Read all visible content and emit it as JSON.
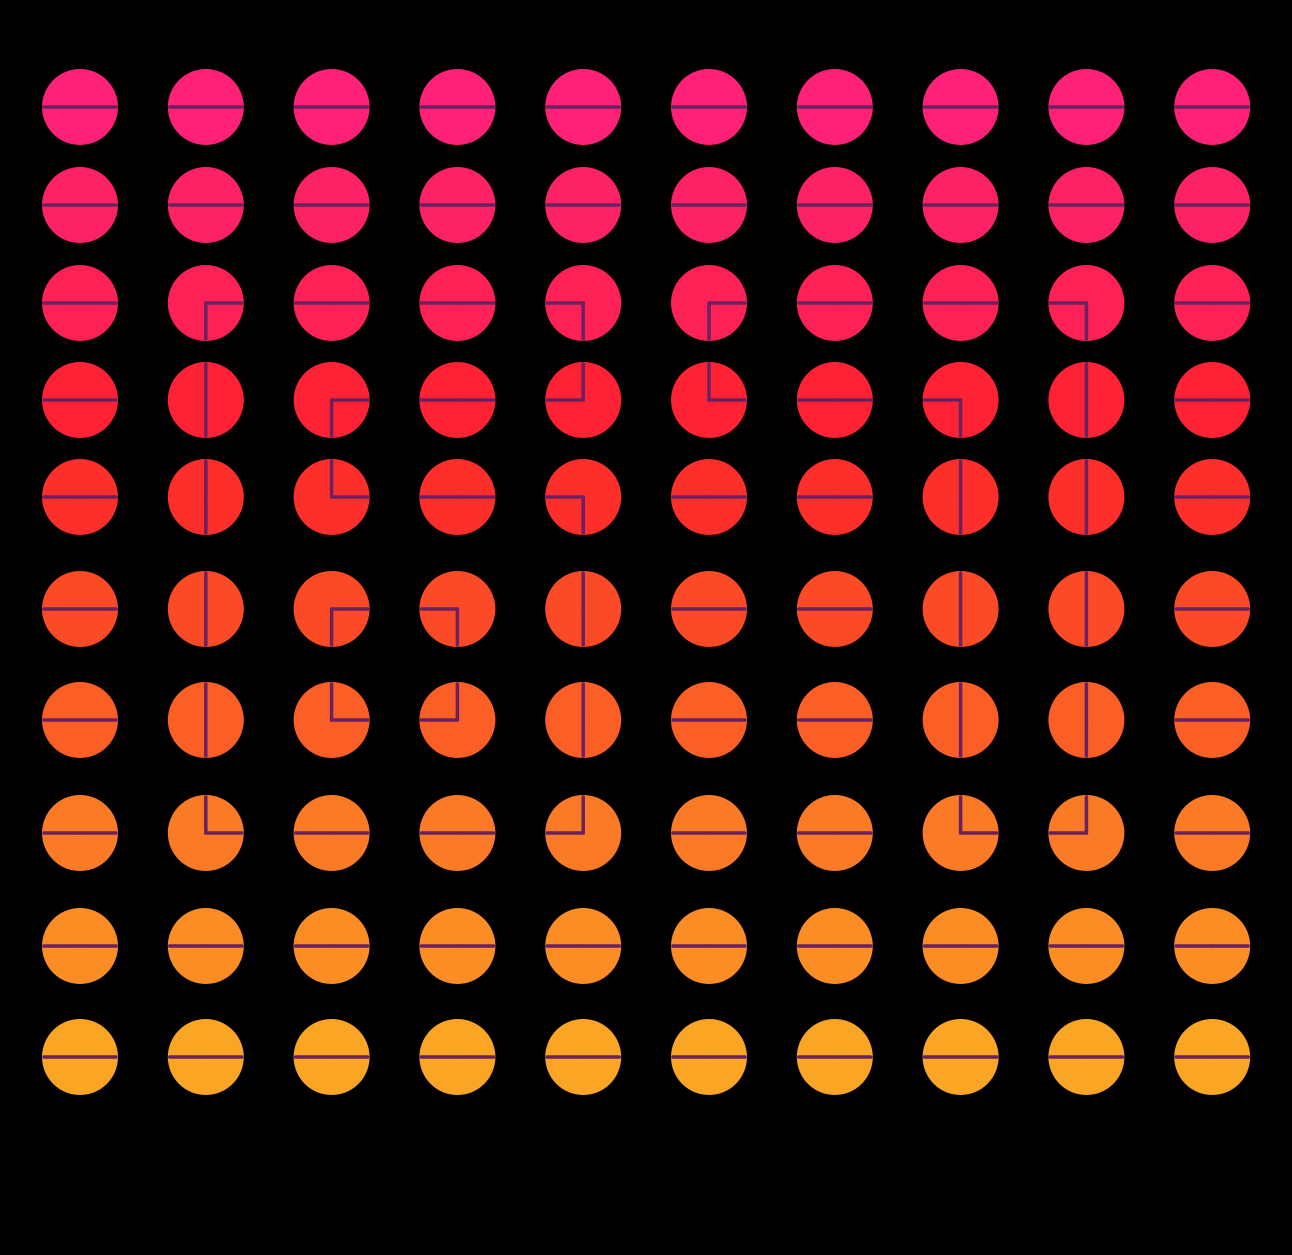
{
  "grid": {
    "rows": [
      {
        "color": "#fe2177",
        "cells": [
          [
            90,
            270
          ],
          [
            90,
            270
          ],
          [
            90,
            270
          ],
          [
            90,
            270
          ],
          [
            90,
            270
          ],
          [
            90,
            270
          ],
          [
            90,
            270
          ],
          [
            90,
            270
          ],
          [
            90,
            270
          ],
          [
            90,
            270
          ]
        ]
      },
      {
        "color": "#fd2166",
        "cells": [
          [
            90,
            270
          ],
          [
            90,
            270
          ],
          [
            90,
            270
          ],
          [
            90,
            270
          ],
          [
            90,
            270
          ],
          [
            90,
            270
          ],
          [
            90,
            270
          ],
          [
            90,
            270
          ],
          [
            90,
            270
          ],
          [
            90,
            270
          ]
        ]
      },
      {
        "color": "#fe2155",
        "cells": [
          [
            90,
            270
          ],
          [
            90,
            180
          ],
          [
            90,
            270
          ],
          [
            90,
            270
          ],
          [
            270,
            180
          ],
          [
            90,
            180
          ],
          [
            90,
            270
          ],
          [
            90,
            270
          ],
          [
            270,
            180
          ],
          [
            90,
            270
          ]
        ]
      },
      {
        "color": "#fe2234",
        "cells": [
          [
            90,
            270
          ],
          [
            0,
            180
          ],
          [
            90,
            180
          ],
          [
            90,
            270
          ],
          [
            0,
            270
          ],
          [
            0,
            90
          ],
          [
            90,
            270
          ],
          [
            270,
            180
          ],
          [
            0,
            180
          ],
          [
            90,
            270
          ]
        ]
      },
      {
        "color": "#fe2e2a",
        "cells": [
          [
            90,
            270
          ],
          [
            0,
            180
          ],
          [
            0,
            90
          ],
          [
            90,
            270
          ],
          [
            270,
            180
          ],
          [
            90,
            270
          ],
          [
            90,
            270
          ],
          [
            0,
            180
          ],
          [
            0,
            180
          ],
          [
            90,
            270
          ]
        ]
      },
      {
        "color": "#fd4a26",
        "cells": [
          [
            90,
            270
          ],
          [
            0,
            180
          ],
          [
            90,
            180
          ],
          [
            270,
            180
          ],
          [
            0,
            180
          ],
          [
            90,
            270
          ],
          [
            90,
            270
          ],
          [
            0,
            180
          ],
          [
            0,
            180
          ],
          [
            90,
            270
          ]
        ]
      },
      {
        "color": "#fc5f25",
        "cells": [
          [
            90,
            270
          ],
          [
            0,
            180
          ],
          [
            0,
            90
          ],
          [
            0,
            270
          ],
          [
            0,
            180
          ],
          [
            90,
            270
          ],
          [
            90,
            270
          ],
          [
            0,
            180
          ],
          [
            0,
            180
          ],
          [
            90,
            270
          ]
        ]
      },
      {
        "color": "#fb7a25",
        "cells": [
          [
            90,
            270
          ],
          [
            0,
            90
          ],
          [
            90,
            270
          ],
          [
            90,
            270
          ],
          [
            0,
            270
          ],
          [
            90,
            270
          ],
          [
            90,
            270
          ],
          [
            0,
            90
          ],
          [
            0,
            270
          ],
          [
            90,
            270
          ]
        ]
      },
      {
        "color": "#fb8d24",
        "cells": [
          [
            90,
            270
          ],
          [
            90,
            270
          ],
          [
            90,
            270
          ],
          [
            90,
            270
          ],
          [
            90,
            270
          ],
          [
            90,
            270
          ],
          [
            90,
            270
          ],
          [
            90,
            270
          ],
          [
            90,
            270
          ],
          [
            90,
            270
          ]
        ]
      },
      {
        "color": "#fba524",
        "cells": [
          [
            90,
            270
          ],
          [
            90,
            270
          ],
          [
            90,
            270
          ],
          [
            90,
            270
          ],
          [
            90,
            270
          ],
          [
            90,
            270
          ],
          [
            90,
            270
          ],
          [
            90,
            270
          ],
          [
            90,
            270
          ],
          [
            90,
            270
          ]
        ]
      }
    ]
  }
}
